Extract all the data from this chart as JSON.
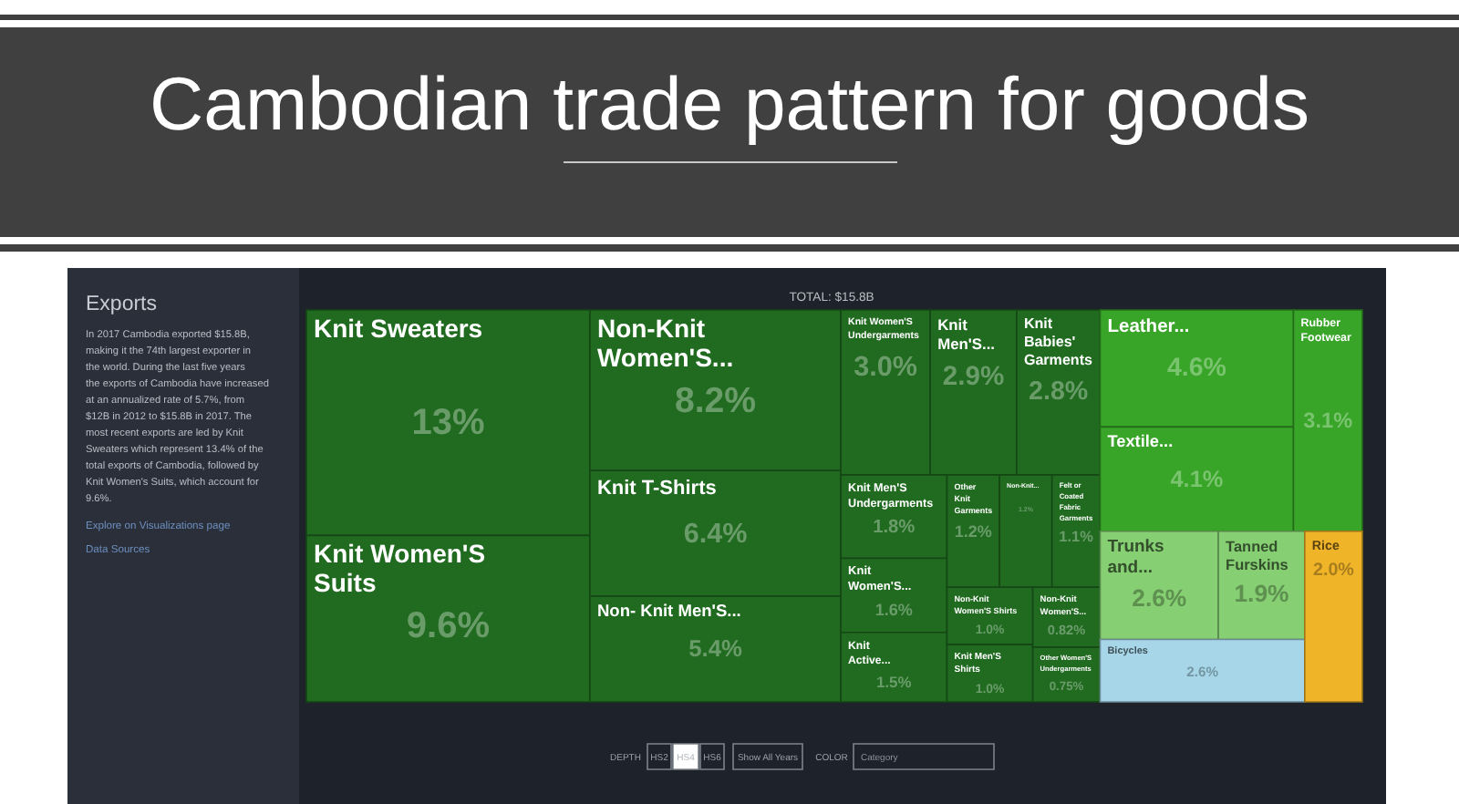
{
  "chart_data": {
    "type": "other",
    "title": "Cambodian trade pattern for goods",
    "subtitle": "TOTAL: $15.8B",
    "categories": [
      "Knit Sweaters",
      "Knit Women'S Suits",
      "Non-Knit Women'S...",
      "Knit T-Shirts",
      "Non- Knit Men'S...",
      "Knit Women'S Undergarments",
      "Knit Men'S...",
      "Knit Babies' Garments",
      "Knit Men'S Undergarments",
      "Knit Women'S...",
      "Knit Active...",
      "Other Knit Garments",
      "Non-Knit...",
      "Felt or Coated Fabric Garments",
      "Non-Knit Women'S Shirts",
      "Knit Men'S Shirts",
      "Non-Knit Women'S...",
      "Other Women'S Undergarments",
      "Leather...",
      "Textile...",
      "Rubber Footwear",
      "Trunks and...",
      "Tanned Furskins",
      "Bicycles",
      "Rice"
    ],
    "values": [
      13,
      9.6,
      8.2,
      6.4,
      5.4,
      3.0,
      2.9,
      2.8,
      1.8,
      1.6,
      1.5,
      1.2,
      1.2,
      1.1,
      1.0,
      1.0,
      0.82,
      0.75,
      4.6,
      4.1,
      3.1,
      2.6,
      1.9,
      2.6,
      2.0
    ],
    "value_labels": [
      "13%",
      "9.6%",
      "8.2%",
      "6.4%",
      "5.4%",
      "3.0%",
      "2.9%",
      "2.8%",
      "1.8%",
      "1.6%",
      "1.5%",
      "1.2%",
      "1.2%",
      "1.1%",
      "1.0%",
      "1.0%",
      "0.82%",
      "0.75%",
      "4.6%",
      "4.1%",
      "3.1%",
      "2.6%",
      "1.9%",
      "2.6%",
      "2.0%"
    ],
    "colors": [
      "#216b21",
      "#216b21",
      "#216b21",
      "#216b21",
      "#216b21",
      "#216b21",
      "#216b21",
      "#216b21",
      "#216b21",
      "#216b21",
      "#216b21",
      "#216b21",
      "#216b21",
      "#216b21",
      "#216b21",
      "#216b21",
      "#216b21",
      "#216b21",
      "#38a528",
      "#38a528",
      "#38a528",
      "#86cf73",
      "#86cf73",
      "#a6d6e8",
      "#f0b429"
    ],
    "annotations": [
      "Exports",
      "In 2017 Cambodia exported $15.8B, making it the 74th largest exporter in the world. During the last five years the exports of Cambodia have increased at an annualized rate of 5.7%, from $12B in 2012 to $15.8B in 2017. The most recent exports are led by Knit Sweaters which represent 13.4% of the total exports of Cambodia, followed by Knit Women's Suits, which account for 9.6%.",
      "Explore on Visualizations page",
      "Data Sources",
      "DEPTH",
      "HS2",
      "HS4",
      "HS6",
      "Show All Years",
      "COLOR",
      "Category"
    ]
  }
}
